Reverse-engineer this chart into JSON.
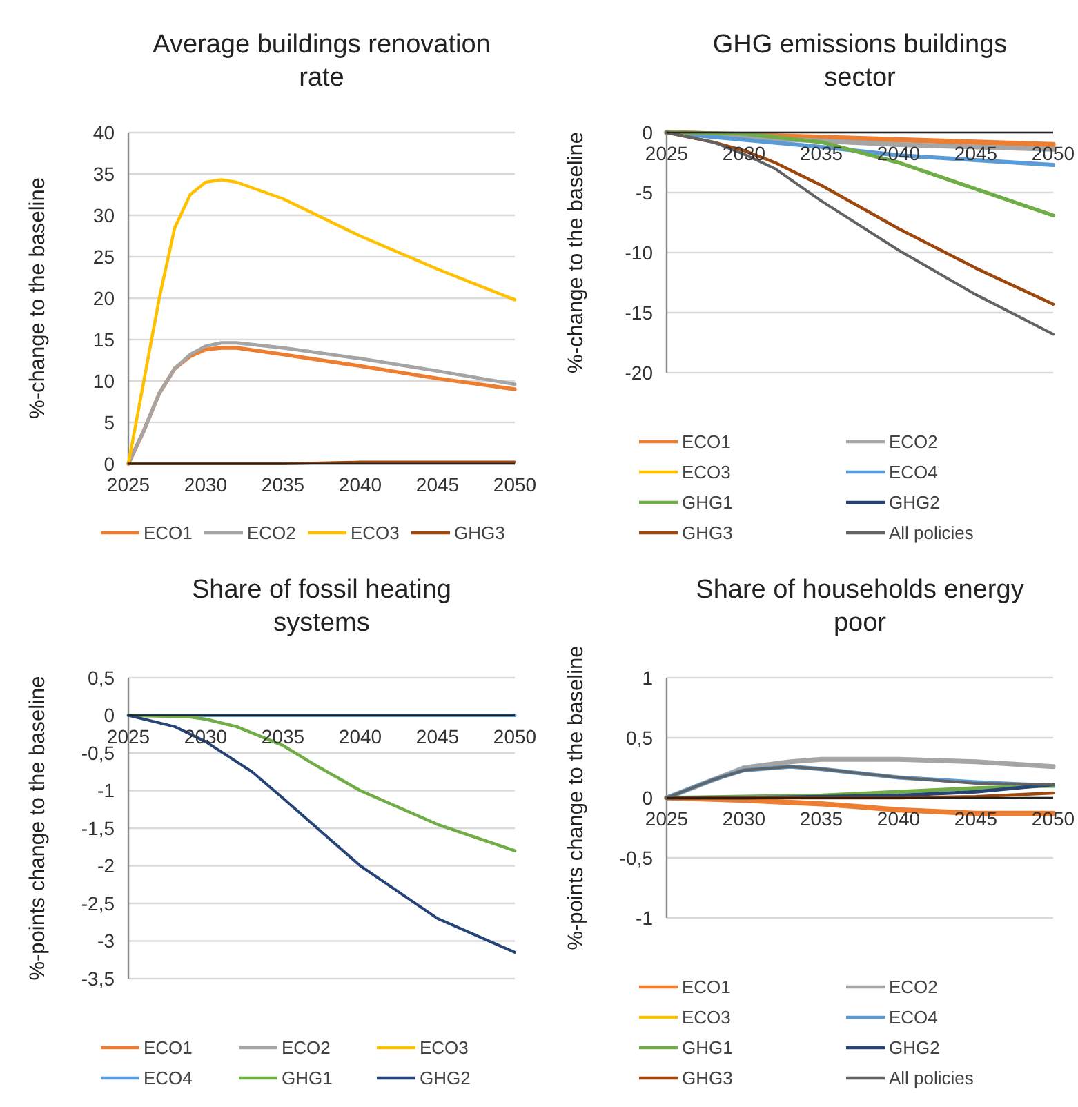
{
  "chart_data": [
    {
      "type": "line",
      "title": "Average buildings renovation rate",
      "ylabel": "%-change to the baseline",
      "xlim": [
        2025,
        2050
      ],
      "xticks": [
        2025,
        2030,
        2035,
        2040,
        2045,
        2050
      ],
      "ylim": [
        0,
        40
      ],
      "yticks": [
        0,
        5,
        10,
        15,
        20,
        25,
        30,
        35,
        40
      ],
      "grid": "y",
      "legend": "bottom",
      "marker": "none",
      "line_style": "solid",
      "series": [
        {
          "name": "ECO1",
          "color": "#ed7d31",
          "x": [
            2025,
            2026,
            2027,
            2028,
            2029,
            2030,
            2031,
            2032,
            2035,
            2040,
            2045,
            2050
          ],
          "values": [
            0,
            4,
            8.5,
            11.5,
            13,
            13.8,
            14,
            14,
            13.2,
            11.8,
            10.3,
            9
          ]
        },
        {
          "name": "ECO2",
          "color": "#a5a5a5",
          "x": [
            2025,
            2026,
            2027,
            2028,
            2029,
            2030,
            2031,
            2032,
            2035,
            2040,
            2045,
            2050
          ],
          "values": [
            0,
            4,
            8.5,
            11.5,
            13.2,
            14.2,
            14.6,
            14.6,
            14,
            12.7,
            11.2,
            9.6
          ]
        },
        {
          "name": "ECO3",
          "color": "#ffc000",
          "x": [
            2025,
            2026,
            2027,
            2028,
            2029,
            2030,
            2031,
            2032,
            2035,
            2040,
            2045,
            2050
          ],
          "values": [
            0,
            10,
            20,
            28.5,
            32.5,
            34,
            34.3,
            34,
            32,
            27.5,
            23.5,
            19.8
          ]
        },
        {
          "name": "GHG3",
          "color": "#9e480e",
          "x": [
            2025,
            2030,
            2035,
            2040,
            2045,
            2050
          ],
          "values": [
            0,
            0,
            0,
            0.2,
            0.2,
            0.2
          ]
        }
      ]
    },
    {
      "type": "line",
      "title": "GHG emissions buildings sector",
      "ylabel": "%-change to the baseline",
      "xlim": [
        2025,
        2050
      ],
      "xticks": [
        2025,
        2030,
        2035,
        2040,
        2045,
        2050
      ],
      "ylim": [
        -20,
        0
      ],
      "yticks": [
        -20,
        -15,
        -10,
        -5,
        0
      ],
      "grid": "y",
      "legend": "bottom",
      "marker": "none",
      "line_style": "solid",
      "series": [
        {
          "name": "ECO1",
          "color": "#ed7d31",
          "x": [
            2025,
            2030,
            2035,
            2040,
            2045,
            2050
          ],
          "values": [
            0,
            -0.2,
            -0.4,
            -0.6,
            -0.8,
            -1
          ]
        },
        {
          "name": "ECO2",
          "color": "#a5a5a5",
          "x": [
            2025,
            2030,
            2035,
            2040,
            2045,
            2050
          ],
          "values": [
            0,
            -0.4,
            -0.7,
            -1,
            -1.2,
            -1.4
          ]
        },
        {
          "name": "ECO3",
          "color": "#ffc000"
        },
        {
          "name": "ECO4",
          "color": "#5b9bd5",
          "x": [
            2025,
            2030,
            2035,
            2040,
            2045,
            2050
          ],
          "values": [
            0,
            -0.6,
            -1.2,
            -1.9,
            -2.3,
            -2.7
          ]
        },
        {
          "name": "GHG1",
          "color": "#70ad47",
          "x": [
            2025,
            2030,
            2035,
            2040,
            2045,
            2050
          ],
          "values": [
            0,
            -0.1,
            -0.8,
            -2.5,
            -4.7,
            -6.9
          ]
        },
        {
          "name": "GHG2",
          "color": "#264478"
        },
        {
          "name": "GHG3",
          "color": "#9e480e",
          "x": [
            2025,
            2028,
            2030,
            2032,
            2035,
            2040,
            2045,
            2050
          ],
          "values": [
            0,
            -0.8,
            -1.5,
            -2.5,
            -4.4,
            -8,
            -11.3,
            -14.3
          ]
        },
        {
          "name": "All policies",
          "color": "#636363",
          "x": [
            2025,
            2028,
            2030,
            2032,
            2035,
            2040,
            2045,
            2050
          ],
          "values": [
            0,
            -0.8,
            -1.8,
            -3,
            -5.7,
            -9.8,
            -13.5,
            -16.8
          ]
        }
      ]
    },
    {
      "type": "line",
      "title": "Share of fossil heating systems",
      "ylabel": "%-points change to the baseline",
      "xlim": [
        2025,
        2050
      ],
      "xticks": [
        2025,
        2030,
        2035,
        2040,
        2045,
        2050
      ],
      "ylim": [
        -3.5,
        0.5
      ],
      "yticks": [
        {
          "value": -3.5,
          "label": "-3,5"
        },
        -3,
        {
          "value": -2.5,
          "label": "-2,5"
        },
        -2,
        {
          "value": -1.5,
          "label": "-1,5"
        },
        -1,
        {
          "value": -0.5,
          "label": "-0,5"
        },
        0,
        {
          "value": 0.5,
          "label": "0,5"
        }
      ],
      "grid": "y",
      "legend": "bottom",
      "marker": "none",
      "line_style": "solid",
      "series": [
        {
          "name": "ECO1",
          "color": "#ed7d31"
        },
        {
          "name": "ECO2",
          "color": "#a5a5a5"
        },
        {
          "name": "ECO3",
          "color": "#ffc000"
        },
        {
          "name": "ECO4",
          "color": "#5b9bd5",
          "x": [
            2025,
            2050
          ],
          "values": [
            0,
            0
          ]
        },
        {
          "name": "GHG1",
          "color": "#70ad47",
          "x": [
            2025,
            2029,
            2030,
            2032,
            2035,
            2037,
            2040,
            2045,
            2050
          ],
          "values": [
            0,
            -0.02,
            -0.05,
            -0.15,
            -0.4,
            -0.65,
            -1,
            -1.45,
            -1.8
          ]
        },
        {
          "name": "GHG2",
          "color": "#264478",
          "x": [
            2025,
            2028,
            2030,
            2033,
            2035,
            2040,
            2045,
            2050
          ],
          "values": [
            0,
            -0.15,
            -0.35,
            -0.75,
            -1.1,
            -2,
            -2.7,
            -3.15
          ]
        }
      ]
    },
    {
      "type": "line",
      "title": "Share of households energy poor",
      "ylabel": "%-points change to the baseline",
      "xlim": [
        2025,
        2050
      ],
      "xticks": [
        2025,
        2030,
        2035,
        2040,
        2045,
        2050
      ],
      "ylim": [
        -1,
        1
      ],
      "yticks": [
        -1,
        {
          "value": -0.5,
          "label": "-0,5"
        },
        0,
        {
          "value": 0.5,
          "label": "0,5"
        },
        1
      ],
      "grid": "y",
      "legend": "bottom",
      "marker": "none",
      "line_style": "solid",
      "series": [
        {
          "name": "ECO1",
          "color": "#ed7d31",
          "x": [
            2025,
            2030,
            2035,
            2040,
            2045,
            2050
          ],
          "values": [
            0,
            -0.02,
            -0.05,
            -0.1,
            -0.13,
            -0.13
          ]
        },
        {
          "name": "ECO2",
          "color": "#a5a5a5",
          "x": [
            2025,
            2028,
            2030,
            2033,
            2035,
            2040,
            2045,
            2050
          ],
          "values": [
            0,
            0.15,
            0.25,
            0.3,
            0.32,
            0.32,
            0.3,
            0.26
          ]
        },
        {
          "name": "ECO3",
          "color": "#ffc000"
        },
        {
          "name": "ECO4",
          "color": "#5b9bd5",
          "x": [
            2025,
            2028,
            2030,
            2033,
            2035,
            2040,
            2045,
            2050
          ],
          "values": [
            0,
            0.15,
            0.23,
            0.26,
            0.24,
            0.17,
            0.13,
            0.1
          ]
        },
        {
          "name": "GHG1",
          "color": "#70ad47",
          "x": [
            2025,
            2030,
            2035,
            2040,
            2045,
            2050
          ],
          "values": [
            0,
            0.01,
            0.02,
            0.05,
            0.08,
            0.1
          ]
        },
        {
          "name": "GHG2",
          "color": "#264478",
          "x": [
            2025,
            2030,
            2035,
            2040,
            2045,
            2050
          ],
          "values": [
            0,
            0,
            0.01,
            0.02,
            0.05,
            0.11
          ]
        },
        {
          "name": "GHG3",
          "color": "#9e480e",
          "x": [
            2025,
            2030,
            2035,
            2040,
            2045,
            2050
          ],
          "values": [
            0,
            0,
            0,
            0,
            0.01,
            0.04
          ]
        },
        {
          "name": "All policies",
          "color": "#636363",
          "x": [
            2025,
            2028,
            2030,
            2033,
            2035,
            2040,
            2045,
            2050
          ],
          "values": [
            0,
            0.15,
            0.23,
            0.26,
            0.24,
            0.17,
            0.12,
            0.11
          ]
        }
      ]
    }
  ]
}
